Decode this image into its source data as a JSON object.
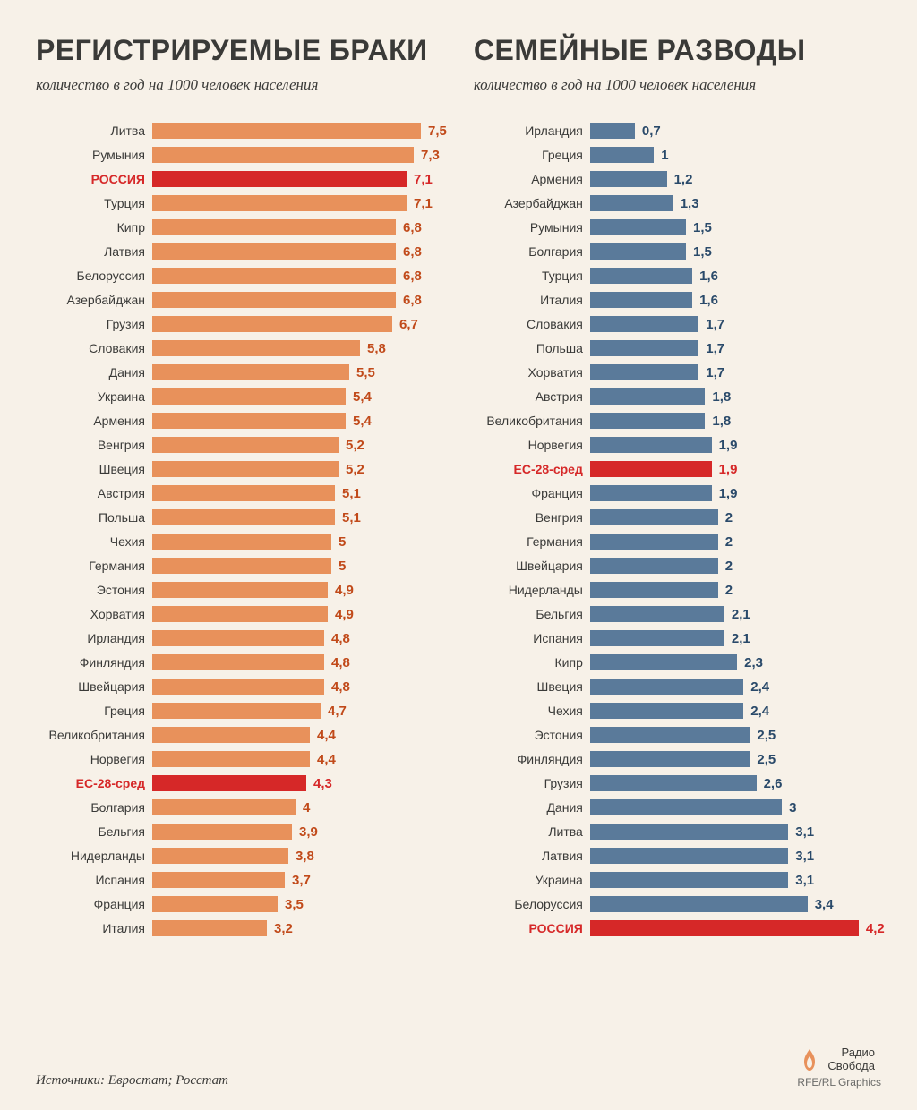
{
  "background_color": "#f7f1e8",
  "title_color": "#3a3a38",
  "title_fontsize": 32,
  "subtitle_fontsize": 17,
  "label_fontsize": 14,
  "value_fontsize": 15,
  "normal_label_color": "#3a3a38",
  "highlight_color": "#d62828",
  "left": {
    "title": "РЕГИСТРИРУЕМЫЕ БРАКИ",
    "subtitle": "количество в год на 1000 человек населения",
    "bar_color": "#e8915b",
    "highlight_bar_color": "#d62828",
    "value_color": "#c14a1a",
    "max_value": 7.5,
    "data": [
      {
        "label": "Литва",
        "value": 7.5,
        "display": "7,5",
        "highlight": false
      },
      {
        "label": "Румыния",
        "value": 7.3,
        "display": "7,3",
        "highlight": false
      },
      {
        "label": "РОССИЯ",
        "value": 7.1,
        "display": "7,1",
        "highlight": true
      },
      {
        "label": "Турция",
        "value": 7.1,
        "display": "7,1",
        "highlight": false
      },
      {
        "label": "Кипр",
        "value": 6.8,
        "display": "6,8",
        "highlight": false
      },
      {
        "label": "Латвия",
        "value": 6.8,
        "display": "6,8",
        "highlight": false
      },
      {
        "label": "Белоруссия",
        "value": 6.8,
        "display": "6,8",
        "highlight": false
      },
      {
        "label": "Азербайджан",
        "value": 6.8,
        "display": "6,8",
        "highlight": false
      },
      {
        "label": "Грузия",
        "value": 6.7,
        "display": "6,7",
        "highlight": false
      },
      {
        "label": "Словакия",
        "value": 5.8,
        "display": "5,8",
        "highlight": false
      },
      {
        "label": "Дания",
        "value": 5.5,
        "display": "5,5",
        "highlight": false
      },
      {
        "label": "Украина",
        "value": 5.4,
        "display": "5,4",
        "highlight": false
      },
      {
        "label": "Армения",
        "value": 5.4,
        "display": "5,4",
        "highlight": false
      },
      {
        "label": "Венгрия",
        "value": 5.2,
        "display": "5,2",
        "highlight": false
      },
      {
        "label": "Швеция",
        "value": 5.2,
        "display": "5,2",
        "highlight": false
      },
      {
        "label": "Австрия",
        "value": 5.1,
        "display": "5,1",
        "highlight": false
      },
      {
        "label": "Польша",
        "value": 5.1,
        "display": "5,1",
        "highlight": false
      },
      {
        "label": "Чехия",
        "value": 5.0,
        "display": "5",
        "highlight": false
      },
      {
        "label": "Германия",
        "value": 5.0,
        "display": "5",
        "highlight": false
      },
      {
        "label": "Эстония",
        "value": 4.9,
        "display": "4,9",
        "highlight": false
      },
      {
        "label": "Хорватия",
        "value": 4.9,
        "display": "4,9",
        "highlight": false
      },
      {
        "label": "Ирландия",
        "value": 4.8,
        "display": "4,8",
        "highlight": false
      },
      {
        "label": "Финляндия",
        "value": 4.8,
        "display": "4,8",
        "highlight": false
      },
      {
        "label": "Швейцария",
        "value": 4.8,
        "display": "4,8",
        "highlight": false
      },
      {
        "label": "Греция",
        "value": 4.7,
        "display": "4,7",
        "highlight": false
      },
      {
        "label": "Великобритания",
        "value": 4.4,
        "display": "4,4",
        "highlight": false
      },
      {
        "label": "Норвегия",
        "value": 4.4,
        "display": "4,4",
        "highlight": false
      },
      {
        "label": "ЕС-28-сред",
        "value": 4.3,
        "display": "4,3",
        "highlight": true
      },
      {
        "label": "Болгария",
        "value": 4.0,
        "display": "4",
        "highlight": false
      },
      {
        "label": "Бельгия",
        "value": 3.9,
        "display": "3,9",
        "highlight": false
      },
      {
        "label": "Нидерланды",
        "value": 3.8,
        "display": "3,8",
        "highlight": false
      },
      {
        "label": "Испания",
        "value": 3.7,
        "display": "3,7",
        "highlight": false
      },
      {
        "label": "Франция",
        "value": 3.5,
        "display": "3,5",
        "highlight": false
      },
      {
        "label": "Италия",
        "value": 3.2,
        "display": "3,2",
        "highlight": false
      }
    ]
  },
  "right": {
    "title": "СЕМЕЙНЫЕ РАЗВОДЫ",
    "subtitle": "количество в год на 1000 человек населения",
    "bar_color": "#5a7a9a",
    "highlight_bar_color": "#d62828",
    "value_color": "#2a4a6a",
    "max_value": 4.2,
    "data": [
      {
        "label": "Ирландия",
        "value": 0.7,
        "display": "0,7",
        "highlight": false
      },
      {
        "label": "Греция",
        "value": 1.0,
        "display": "1",
        "highlight": false
      },
      {
        "label": "Армения",
        "value": 1.2,
        "display": "1,2",
        "highlight": false
      },
      {
        "label": "Азербайджан",
        "value": 1.3,
        "display": "1,3",
        "highlight": false
      },
      {
        "label": "Румыния",
        "value": 1.5,
        "display": "1,5",
        "highlight": false
      },
      {
        "label": "Болгария",
        "value": 1.5,
        "display": "1,5",
        "highlight": false
      },
      {
        "label": "Турция",
        "value": 1.6,
        "display": "1,6",
        "highlight": false
      },
      {
        "label": "Италия",
        "value": 1.6,
        "display": "1,6",
        "highlight": false
      },
      {
        "label": "Словакия",
        "value": 1.7,
        "display": "1,7",
        "highlight": false
      },
      {
        "label": "Польша",
        "value": 1.7,
        "display": "1,7",
        "highlight": false
      },
      {
        "label": "Хорватия",
        "value": 1.7,
        "display": "1,7",
        "highlight": false
      },
      {
        "label": "Австрия",
        "value": 1.8,
        "display": "1,8",
        "highlight": false
      },
      {
        "label": "Великобритания",
        "value": 1.8,
        "display": "1,8",
        "highlight": false
      },
      {
        "label": "Норвегия",
        "value": 1.9,
        "display": "1,9",
        "highlight": false
      },
      {
        "label": "ЕС-28-сред",
        "value": 1.9,
        "display": "1,9",
        "highlight": true
      },
      {
        "label": "Франция",
        "value": 1.9,
        "display": "1,9",
        "highlight": false
      },
      {
        "label": "Венгрия",
        "value": 2.0,
        "display": "2",
        "highlight": false
      },
      {
        "label": "Германия",
        "value": 2.0,
        "display": "2",
        "highlight": false
      },
      {
        "label": "Швейцария",
        "value": 2.0,
        "display": "2",
        "highlight": false
      },
      {
        "label": "Нидерланды",
        "value": 2.0,
        "display": "2",
        "highlight": false
      },
      {
        "label": "Бельгия",
        "value": 2.1,
        "display": "2,1",
        "highlight": false
      },
      {
        "label": "Испания",
        "value": 2.1,
        "display": "2,1",
        "highlight": false
      },
      {
        "label": "Кипр",
        "value": 2.3,
        "display": "2,3",
        "highlight": false
      },
      {
        "label": "Швеция",
        "value": 2.4,
        "display": "2,4",
        "highlight": false
      },
      {
        "label": "Чехия",
        "value": 2.4,
        "display": "2,4",
        "highlight": false
      },
      {
        "label": "Эстония",
        "value": 2.5,
        "display": "2,5",
        "highlight": false
      },
      {
        "label": "Финляндия",
        "value": 2.5,
        "display": "2,5",
        "highlight": false
      },
      {
        "label": "Грузия",
        "value": 2.6,
        "display": "2,6",
        "highlight": false
      },
      {
        "label": "Дания",
        "value": 3.0,
        "display": "3",
        "highlight": false
      },
      {
        "label": "Литва",
        "value": 3.1,
        "display": "3,1",
        "highlight": false
      },
      {
        "label": "Латвия",
        "value": 3.1,
        "display": "3,1",
        "highlight": false
      },
      {
        "label": "Украина",
        "value": 3.1,
        "display": "3,1",
        "highlight": false
      },
      {
        "label": "Белоруссия",
        "value": 3.4,
        "display": "3,4",
        "highlight": false
      },
      {
        "label": "РОССИЯ",
        "value": 4.2,
        "display": "4,2",
        "highlight": true
      }
    ]
  },
  "sources": "Источники: Евростат; Росстат",
  "logo_text_1": "Радио",
  "logo_text_2": "Свобода",
  "credits": "RFE/RL Graphics",
  "logo_color": "#e8915b"
}
